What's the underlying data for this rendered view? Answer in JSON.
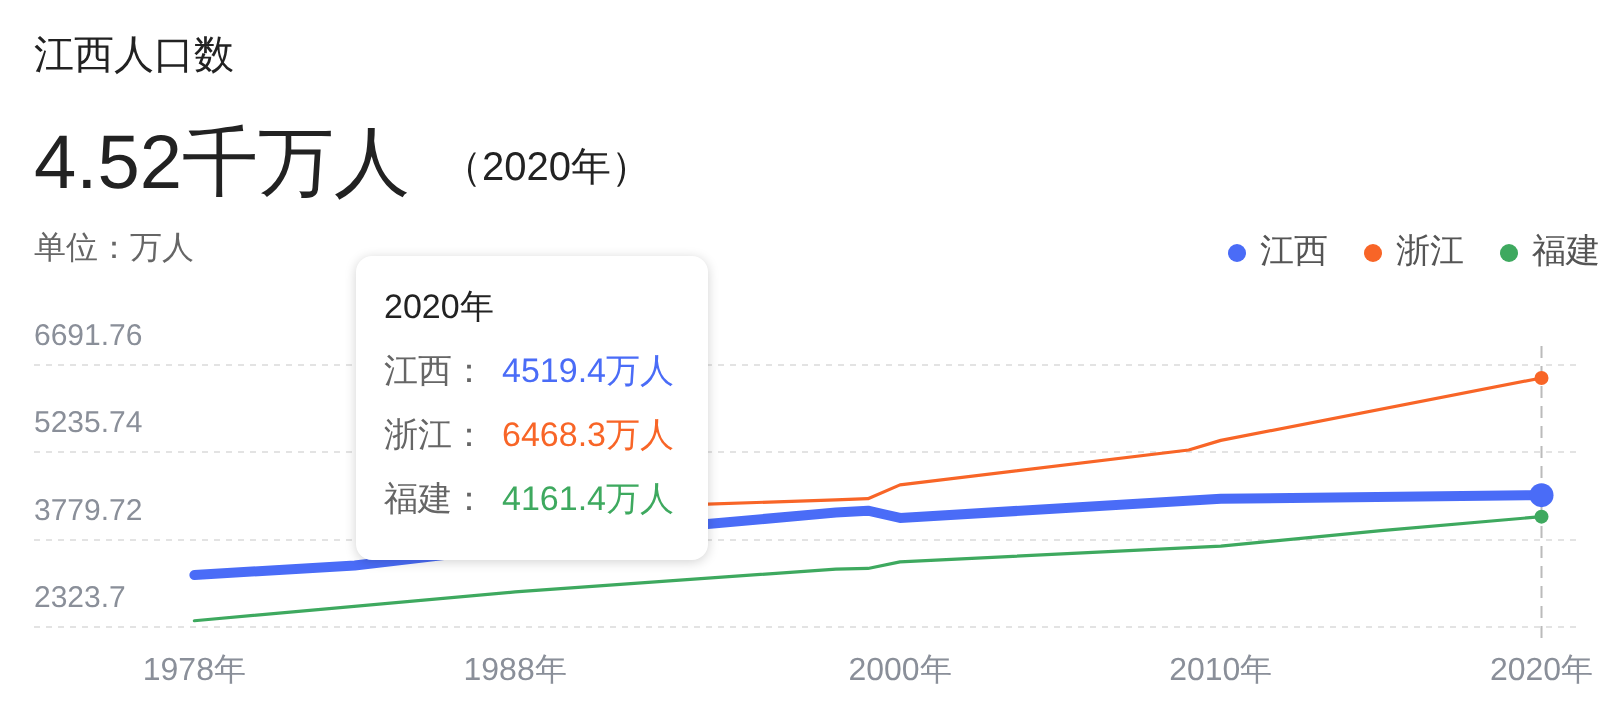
{
  "chart_data": {
    "type": "line",
    "title": "江西人口数",
    "subtitle": "4.52千万人",
    "annotations": [
      "（2020年）",
      "2020年",
      "江西：",
      "4519.4万人",
      "浙江：",
      "6468.3万人",
      "福建：",
      "4161.4万人"
    ],
    "ylabel": "单位：万人",
    "xlim": [
      1973,
      2021.2
    ],
    "xticks": [
      {
        "value": 1978,
        "label": "1978年"
      },
      {
        "value": 1988,
        "label": "1988年"
      },
      {
        "value": 2000,
        "label": "2000年"
      },
      {
        "value": 2010,
        "label": "2010年"
      },
      {
        "value": 2020,
        "label": "2020年"
      }
    ],
    "ylim": [
      2050,
      7000
    ],
    "yticks": [
      2323.7,
      3779.72,
      5235.74,
      6691.76
    ],
    "grid": "y",
    "legend": "top right",
    "line_style": "solid",
    "ref_lines": [
      {
        "axis": "x",
        "value": 2020,
        "color": "#bbbbbb",
        "line_style": "dashed"
      }
    ],
    "series": [
      {
        "name": "江西",
        "color": "#4a6cf7",
        "x": [
          1978,
          1983,
          1994,
          1998,
          1999,
          2000,
          2010,
          2020
        ],
        "values": [
          3190,
          3350,
          4040,
          4230,
          4260,
          4140,
          4460,
          4519.4
        ]
      },
      {
        "name": "浙江",
        "color": "#f86527",
        "x": [
          1994,
          1998,
          1999,
          2000,
          2009,
          2010,
          2020
        ],
        "values": [
          4370,
          4440,
          4460,
          4690,
          5270,
          5430,
          6468.3
        ]
      },
      {
        "name": "福建",
        "color": "#3ea95f",
        "x": [
          1978,
          1988,
          1998,
          1999,
          2000,
          2010,
          2015,
          2020
        ],
        "values": [
          2430,
          2910,
          3290,
          3300,
          3410,
          3670,
          3930,
          4161.4
        ]
      }
    ]
  }
}
